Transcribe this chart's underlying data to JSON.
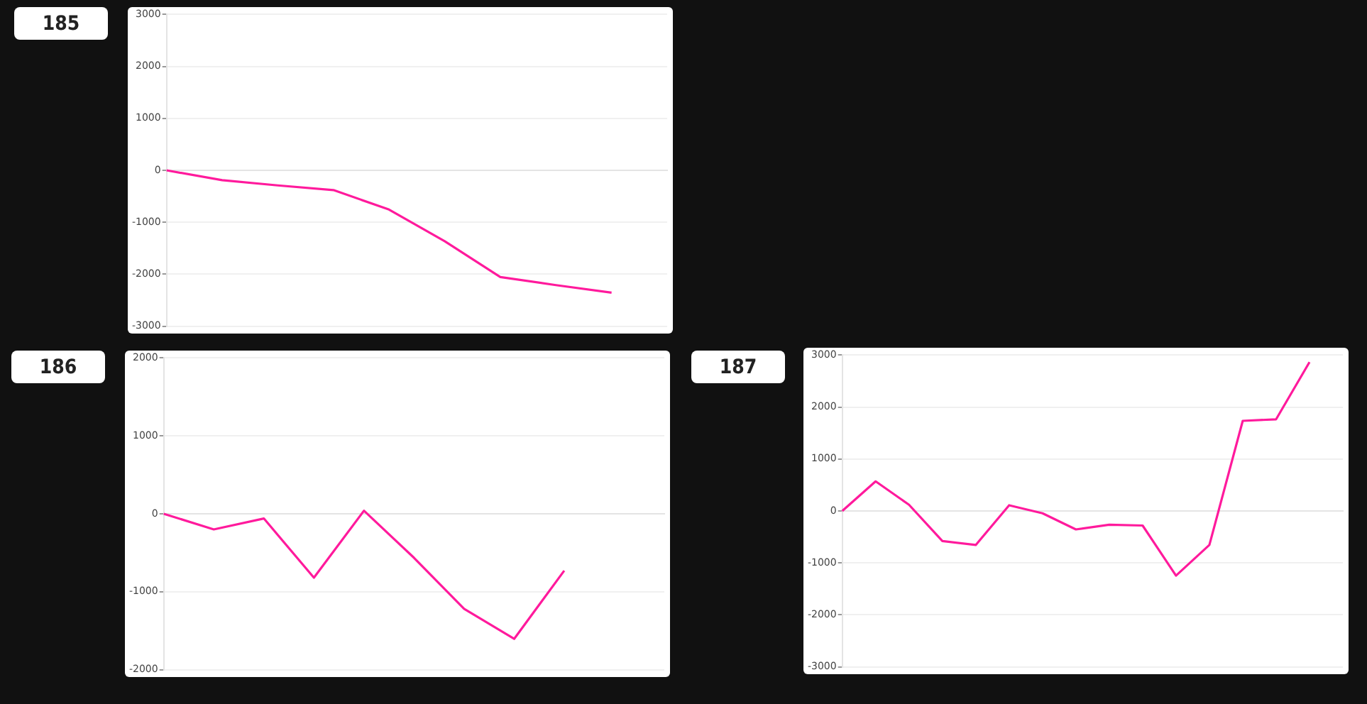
{
  "chart_data": [
    {
      "type": "line",
      "title": "185",
      "categories": [
        null,
        null,
        null,
        null,
        null,
        null,
        null,
        null,
        null,
        null
      ],
      "values": [
        0,
        -190,
        -290,
        -380,
        -755,
        -1365,
        -2055,
        -2210,
        -2355,
        null
      ],
      "color": "#ff1a9c",
      "ylim": [
        -3000,
        3000
      ],
      "yticks": [
        -3000,
        -2000,
        -1000,
        0,
        1000,
        2000,
        3000
      ],
      "grid": "y",
      "tick_labels": "y",
      "marker": "none",
      "line_style": "solid"
    },
    {
      "type": "line",
      "title": "186",
      "categories": [
        null,
        null,
        null,
        null,
        null,
        null,
        null,
        null,
        null,
        null,
        null
      ],
      "values": [
        0,
        -200,
        -60,
        -820,
        40,
        -565,
        -1220,
        -1605,
        -730,
        null,
        null
      ],
      "color": "#ff1a9c",
      "ylim": [
        -2000,
        2000
      ],
      "yticks": [
        -2000,
        -1000,
        0,
        1000,
        2000
      ],
      "grid": "y",
      "tick_labels": "y",
      "marker": "none",
      "line_style": "solid"
    },
    {
      "type": "line",
      "title": "187",
      "categories": [
        null,
        null,
        null,
        null,
        null,
        null,
        null,
        null,
        null,
        null,
        null,
        null,
        null,
        null,
        null,
        null
      ],
      "values": [
        0,
        570,
        120,
        -580,
        -655,
        110,
        -45,
        -355,
        -265,
        -280,
        -1245,
        -655,
        1735,
        1765,
        2865,
        null
      ],
      "color": "#ff1a9c",
      "ylim": [
        -3000,
        3000
      ],
      "yticks": [
        -3000,
        -2000,
        -1000,
        0,
        1000,
        2000,
        3000
      ],
      "grid": "y",
      "tick_labels": "y",
      "marker": "none",
      "line_style": "solid"
    }
  ]
}
